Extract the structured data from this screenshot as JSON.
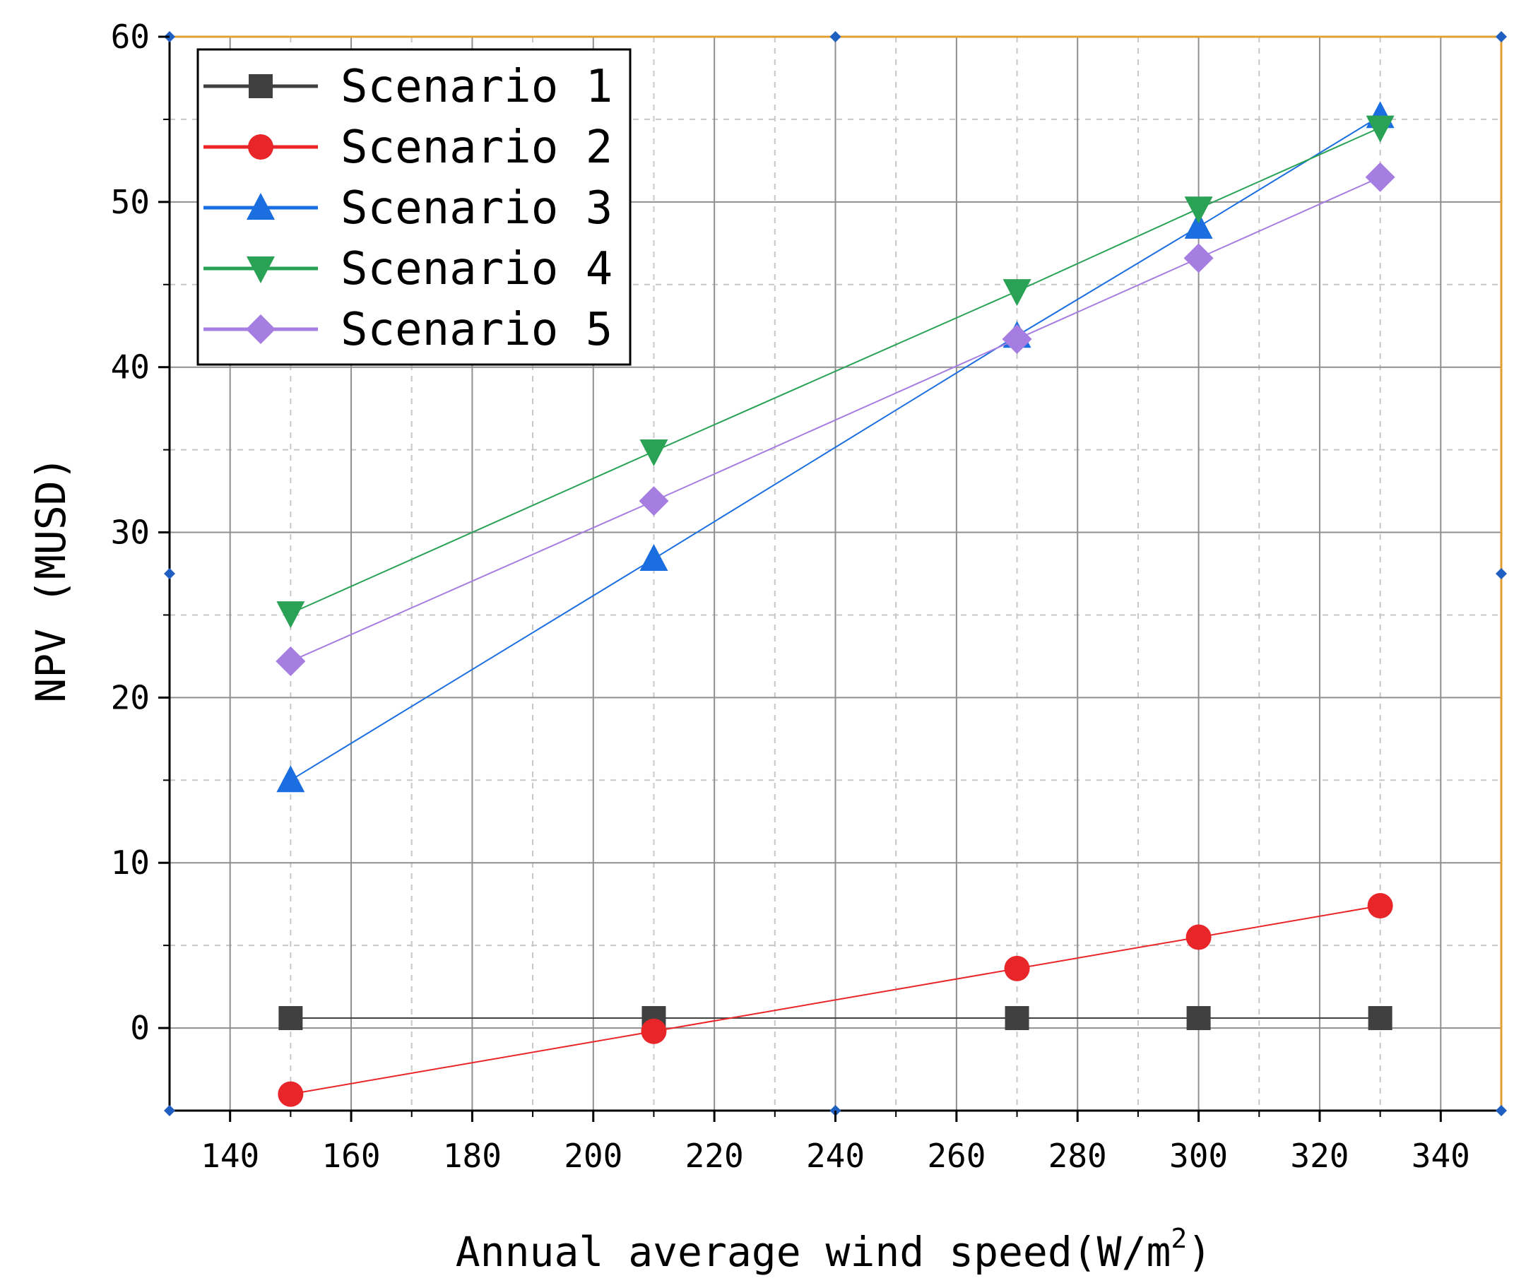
{
  "chart_data": {
    "type": "line",
    "title": "",
    "xlabel": "Annual average wind speed(W/m",
    "xlabel_superscript": "2",
    "xlabel_suffix": ")",
    "ylabel": "NPV (MUSD)",
    "xlim": [
      130,
      350
    ],
    "ylim": [
      -5,
      60
    ],
    "x_ticks": [
      140,
      160,
      180,
      200,
      220,
      240,
      260,
      280,
      300,
      320,
      340
    ],
    "y_ticks": [
      0,
      10,
      20,
      30,
      40,
      50,
      60
    ],
    "grid": true,
    "legend_position": "top-left",
    "x": [
      150,
      210,
      270,
      300,
      330
    ],
    "series": [
      {
        "name": "Scenario 1",
        "color": "#404040",
        "marker": "square",
        "values": [
          0.6,
          0.6,
          0.6,
          0.6,
          0.6
        ]
      },
      {
        "name": "Scenario 2",
        "color": "#e8262a",
        "marker": "circle",
        "values": [
          -4.0,
          -0.2,
          3.6,
          5.5,
          7.4
        ]
      },
      {
        "name": "Scenario 3",
        "color": "#1a6ee0",
        "marker": "triangle-up",
        "values": [
          15.0,
          28.4,
          41.9,
          48.5,
          55.2
        ]
      },
      {
        "name": "Scenario 4",
        "color": "#2aa255",
        "marker": "triangle-down",
        "values": [
          25.1,
          34.9,
          44.6,
          49.6,
          54.5
        ]
      },
      {
        "name": "Scenario 5",
        "color": "#a67de0",
        "marker": "diamond",
        "values": [
          22.2,
          31.9,
          41.7,
          46.6,
          51.5
        ]
      }
    ]
  }
}
